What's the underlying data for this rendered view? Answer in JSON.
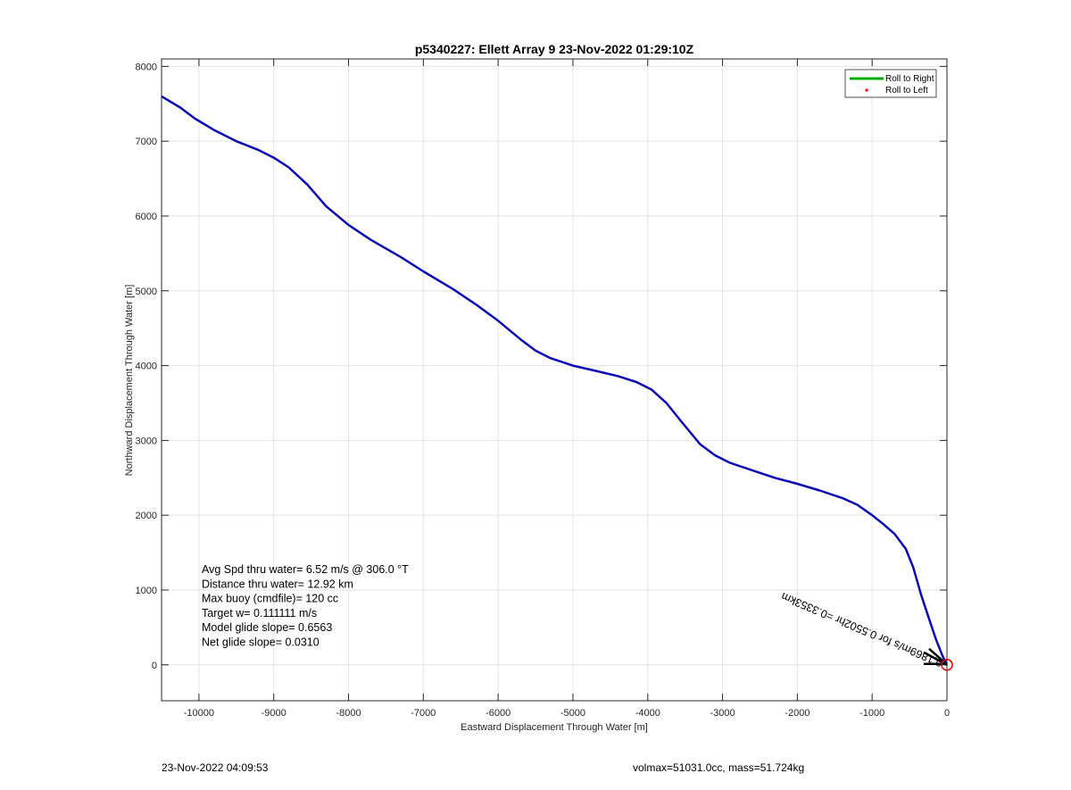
{
  "chart_data": {
    "type": "line",
    "title": "p5340227: Ellett Array 9 23-Nov-2022 01:29:10Z",
    "xlabel": "Eastward Displacement Through Water [m]",
    "ylabel": "Northward Displacement Through Water [m]",
    "xlim": [
      -10500,
      0
    ],
    "ylim": [
      -480,
      8100
    ],
    "x_ticks": [
      -10000,
      -9000,
      -8000,
      -7000,
      -6000,
      -5000,
      -4000,
      -3000,
      -2000,
      -1000,
      0
    ],
    "x_tick_labels": [
      "-10000",
      "-9000",
      "-8000",
      "-7000",
      "-6000",
      "-5000",
      "-4000",
      "-3000",
      "-2000",
      "-1000",
      "0"
    ],
    "y_ticks": [
      0,
      1000,
      2000,
      3000,
      4000,
      5000,
      6000,
      7000,
      8000
    ],
    "y_tick_labels": [
      "0",
      "1000",
      "2000",
      "3000",
      "4000",
      "5000",
      "6000",
      "7000",
      "8000"
    ],
    "grid": true,
    "legend_position": "top-right",
    "legend": [
      {
        "label": "Roll to Right",
        "color": "#00aa00",
        "style": "line"
      },
      {
        "label": "Roll to Left",
        "color": "#ff0000",
        "style": "dot"
      }
    ],
    "series": [
      {
        "color": "#0a0ab4",
        "x": [
          -10500,
          -10250,
          -10050,
          -9800,
          -9500,
          -9200,
          -9000,
          -8800,
          -8550,
          -8300,
          -8000,
          -7700,
          -7300,
          -7000,
          -6600,
          -6300,
          -6000,
          -5700,
          -5500,
          -5300,
          -5000,
          -4700,
          -4400,
          -4150,
          -3950,
          -3750,
          -3550,
          -3300,
          -3100,
          -2900,
          -2600,
          -2300,
          -2000,
          -1700,
          -1400,
          -1200,
          -1000,
          -850,
          -700,
          -550,
          -450,
          -350,
          -250,
          -150,
          -60,
          0
        ],
        "y": [
          7600,
          7450,
          7300,
          7150,
          7000,
          6880,
          6780,
          6650,
          6420,
          6130,
          5880,
          5680,
          5450,
          5260,
          5020,
          4820,
          4600,
          4350,
          4200,
          4100,
          4000,
          3930,
          3860,
          3780,
          3680,
          3500,
          3250,
          2950,
          2800,
          2700,
          2600,
          2500,
          2420,
          2330,
          2230,
          2140,
          2000,
          1880,
          1750,
          1550,
          1300,
          950,
          650,
          350,
          120,
          0
        ]
      }
    ],
    "stats_lines": [
      "Avg Spd thru water=  6.52 m/s @ 306.0 °T",
      "Distance thru water= 12.92 km",
      "Max buoy (cmdfile)= 120 cc",
      "Target w= 0.111111 m/s",
      "Model glide slope= 0.6563",
      "Net glide slope= 0.0310"
    ],
    "current_annotation": "0.1869m/s for 0.5502hr =0.3353km",
    "marker_color": "#dd0000"
  },
  "footer": {
    "left": "23-Nov-2022 04:09:53",
    "right": "volmax=51031.0cc, mass=51.724kg"
  }
}
